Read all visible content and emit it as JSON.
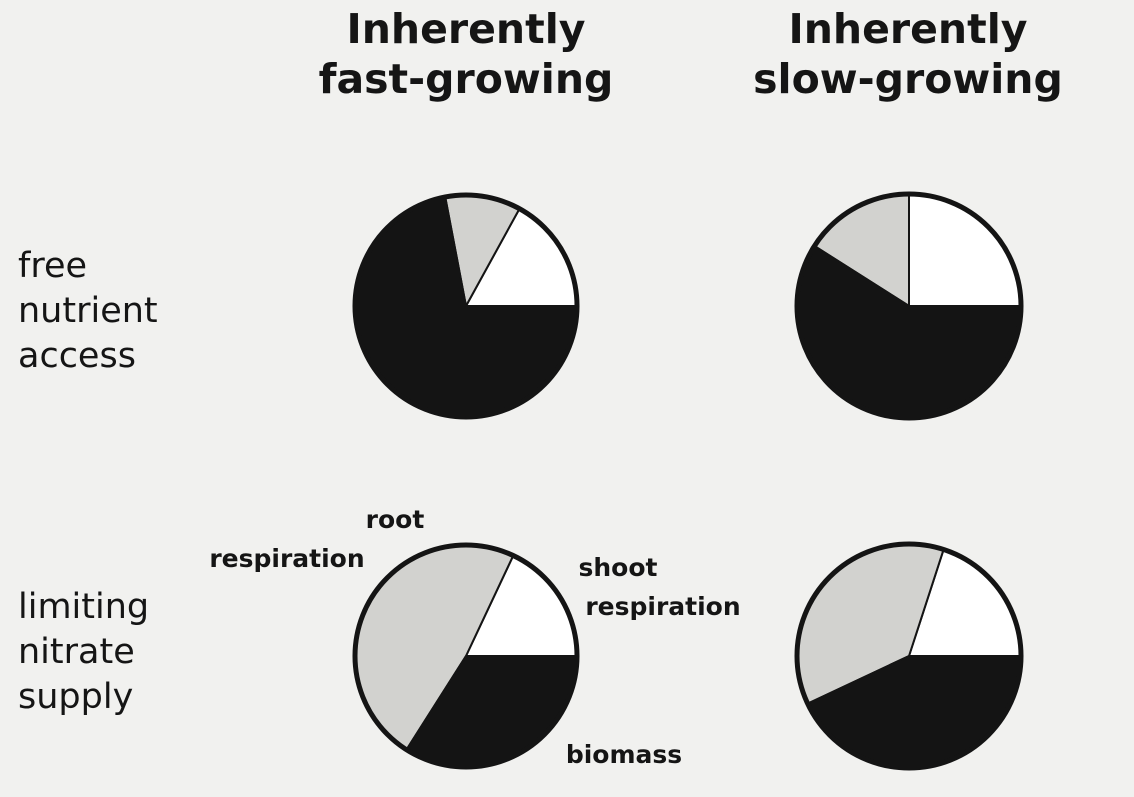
{
  "columns": [
    {
      "line1": "Inherently",
      "line2": "fast-growing"
    },
    {
      "line1": "Inherently",
      "line2": "slow-growing"
    }
  ],
  "rows": [
    {
      "lines": [
        "free",
        "nutrient",
        "access"
      ]
    },
    {
      "lines": [
        "limiting",
        "nitrate",
        "supply"
      ]
    }
  ],
  "colors": {
    "shoot_respiration": "#ffffff",
    "root_respiration": "#d2d2cf",
    "biomass": "#141414"
  },
  "chart_data": {
    "type": "pie",
    "categories": [
      "shoot respiration",
      "root respiration",
      "biomass"
    ],
    "category_labels": {
      "shoot respiration": [
        "shoot",
        "respiration"
      ],
      "root respiration": [
        "root",
        "respiration"
      ],
      "biomass": [
        "biomass"
      ]
    },
    "pies": [
      {
        "row": "free nutrient access",
        "column": "Inherently fast-growing",
        "values": [
          17,
          11,
          72
        ]
      },
      {
        "row": "free nutrient access",
        "column": "Inherently slow-growing",
        "values": [
          25,
          16,
          59
        ]
      },
      {
        "row": "limiting nitrate supply",
        "column": "Inherently fast-growing",
        "values": [
          18,
          48,
          34
        ]
      },
      {
        "row": "limiting nitrate supply",
        "column": "Inherently slow-growing",
        "values": [
          20,
          37,
          43
        ]
      }
    ]
  }
}
